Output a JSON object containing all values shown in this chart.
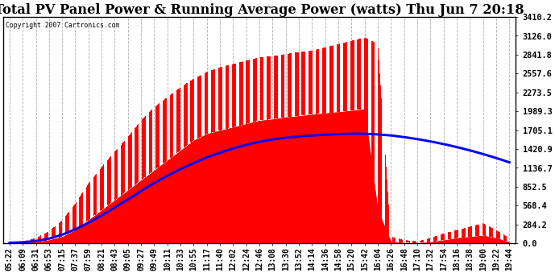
{
  "title": "Total PV Panel Power & Running Average Power (watts) Thu Jun 7 20:18",
  "copyright": "Copyright 2007 Cartronics.com",
  "y_max": 3410.2,
  "y_min": 0.0,
  "y_ticks": [
    0.0,
    284.2,
    568.4,
    852.5,
    1136.7,
    1420.9,
    1705.1,
    1989.3,
    2273.5,
    2557.6,
    2841.8,
    3126.0,
    3410.2
  ],
  "x_labels": [
    "05:22",
    "06:09",
    "06:31",
    "06:53",
    "07:15",
    "07:37",
    "07:59",
    "08:21",
    "08:43",
    "09:05",
    "09:27",
    "09:49",
    "10:11",
    "10:33",
    "10:55",
    "11:17",
    "11:40",
    "12:02",
    "12:24",
    "12:46",
    "13:08",
    "13:30",
    "13:52",
    "14:14",
    "14:36",
    "14:58",
    "15:20",
    "15:42",
    "16:04",
    "16:26",
    "16:48",
    "17:10",
    "17:32",
    "17:54",
    "18:16",
    "18:38",
    "19:00",
    "19:22",
    "19:44"
  ],
  "bg_color": "#ffffff",
  "plot_bg_color": "#ffffff",
  "fill_color": "#ff0000",
  "line_color": "#0000ff",
  "grid_color": "#aaaaaa",
  "title_fontsize": 11,
  "tick_fontsize": 6.5,
  "pv_envelope": [
    20,
    30,
    80,
    180,
    350,
    600,
    900,
    1150,
    1380,
    1600,
    1850,
    2050,
    2200,
    2350,
    2480,
    2580,
    2650,
    2700,
    2750,
    2800,
    2820,
    2850,
    2880,
    2900,
    2950,
    3000,
    3050,
    3100,
    3000,
    100,
    50,
    30,
    80,
    150,
    200,
    250,
    300,
    200,
    80
  ],
  "pv_floor": [
    5,
    8,
    20,
    50,
    100,
    200,
    350,
    500,
    650,
    800,
    950,
    1100,
    1250,
    1400,
    1550,
    1650,
    1700,
    1750,
    1800,
    1850,
    1870,
    1900,
    1920,
    1940,
    1960,
    1980,
    2000,
    2020,
    500,
    30,
    10,
    5,
    20,
    50,
    80,
    100,
    120,
    80,
    20
  ],
  "avg_data": [
    8,
    15,
    35,
    70,
    130,
    210,
    310,
    420,
    540,
    660,
    790,
    910,
    1020,
    1120,
    1210,
    1295,
    1365,
    1430,
    1485,
    1530,
    1565,
    1590,
    1610,
    1625,
    1635,
    1645,
    1652,
    1650,
    1640,
    1625,
    1600,
    1570,
    1535,
    1495,
    1450,
    1400,
    1345,
    1285,
    1220
  ]
}
